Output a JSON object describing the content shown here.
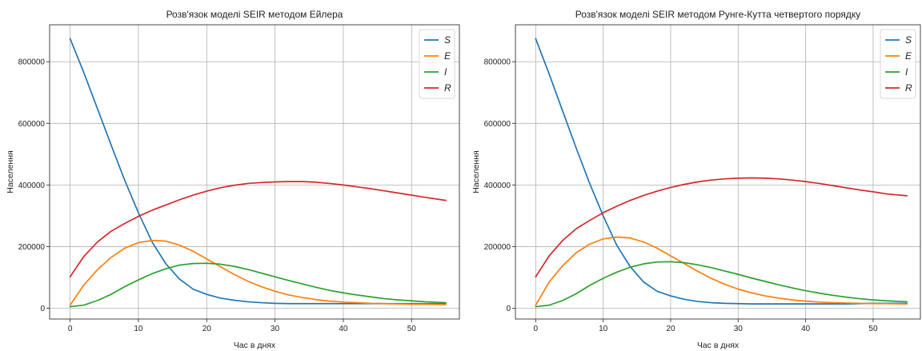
{
  "chart_data": [
    {
      "type": "line",
      "title": "Розв'язок моделі SEIR методом Ейлера",
      "xlabel": "Час в днях",
      "ylabel": "Населення",
      "xlim": [
        -3,
        57
      ],
      "ylim": [
        -35000,
        920000
      ],
      "xticks": [
        0,
        10,
        20,
        30,
        40,
        50
      ],
      "yticks": [
        0,
        200000,
        400000,
        600000,
        800000
      ],
      "grid": true,
      "legend": "top-right",
      "x": [
        0,
        2,
        4,
        6,
        8,
        10,
        12,
        14,
        16,
        18,
        20,
        22,
        24,
        26,
        28,
        30,
        32,
        34,
        36,
        38,
        40,
        42,
        44,
        46,
        48,
        50,
        52,
        55
      ],
      "series": [
        {
          "name": "S",
          "color": "#1f77b4",
          "values": [
            875000,
            765000,
            648000,
            530000,
            415000,
            310000,
            215000,
            145000,
            95000,
            62000,
            45000,
            33000,
            26000,
            21000,
            18000,
            16000,
            15000,
            15000,
            15000,
            15000,
            15000,
            15000,
            15000,
            15000,
            15000,
            15000,
            15000,
            15000
          ]
        },
        {
          "name": "E",
          "color": "#ff7f0e",
          "values": [
            10000,
            75000,
            125000,
            165000,
            195000,
            213000,
            220000,
            218000,
            205000,
            185000,
            160000,
            135000,
            110000,
            88000,
            70000,
            55000,
            43000,
            35000,
            28000,
            23000,
            20000,
            18000,
            16000,
            15000,
            14000,
            13000,
            13000,
            12000
          ]
        },
        {
          "name": "I",
          "color": "#2ca02c",
          "values": [
            5000,
            10000,
            25000,
            45000,
            70000,
            92000,
            112000,
            128000,
            140000,
            145000,
            146000,
            143000,
            136000,
            126000,
            114000,
            102000,
            90000,
            79000,
            68000,
            58000,
            50000,
            43000,
            37000,
            31000,
            27000,
            24000,
            21000,
            18000
          ]
        },
        {
          "name": "R",
          "color": "#d62728",
          "values": [
            102000,
            168000,
            215000,
            250000,
            275000,
            298000,
            318000,
            335000,
            352000,
            367000,
            380000,
            391000,
            399000,
            405000,
            408000,
            410000,
            411000,
            411000,
            409000,
            405000,
            400000,
            394000,
            388000,
            381000,
            374000,
            367000,
            360000,
            350000
          ]
        }
      ]
    },
    {
      "type": "line",
      "title": "Розв'язок моделі SEIR методом Рунге-Кутта четвертого порядку",
      "xlabel": "Час в днях",
      "ylabel": "Населення",
      "xlim": [
        -3,
        57
      ],
      "ylim": [
        -35000,
        920000
      ],
      "xticks": [
        0,
        10,
        20,
        30,
        40,
        50
      ],
      "yticks": [
        0,
        200000,
        400000,
        600000,
        800000
      ],
      "grid": true,
      "legend": "top-right",
      "x": [
        0,
        2,
        4,
        6,
        8,
        10,
        12,
        14,
        16,
        18,
        20,
        22,
        24,
        26,
        28,
        30,
        32,
        34,
        36,
        38,
        40,
        42,
        44,
        46,
        48,
        50,
        52,
        55
      ],
      "series": [
        {
          "name": "S",
          "color": "#1f77b4",
          "values": [
            875000,
            760000,
            640000,
            520000,
            405000,
            300000,
            205000,
            135000,
            85000,
            55000,
            40000,
            29000,
            22000,
            18000,
            16000,
            15000,
            14000,
            14000,
            14000,
            14000,
            14000,
            14000,
            14000,
            14000,
            15000,
            16000,
            16000,
            16000
          ]
        },
        {
          "name": "E",
          "color": "#ff7f0e",
          "values": [
            10000,
            85000,
            138000,
            180000,
            208000,
            225000,
            231000,
            228000,
            215000,
            195000,
            170000,
            145000,
            120000,
            97000,
            78000,
            62000,
            50000,
            40000,
            33000,
            27000,
            23000,
            20000,
            18000,
            17000,
            16000,
            15000,
            15000,
            14000
          ]
        },
        {
          "name": "I",
          "color": "#2ca02c",
          "values": [
            5000,
            10000,
            25000,
            47000,
            74000,
            97000,
            117000,
            133000,
            144000,
            150000,
            151000,
            148000,
            141000,
            132000,
            121000,
            110000,
            98000,
            87000,
            76000,
            66000,
            57000,
            49000,
            42000,
            36000,
            31000,
            27000,
            24000,
            21000
          ]
        },
        {
          "name": "R",
          "color": "#d62728",
          "values": [
            102000,
            170000,
            220000,
            258000,
            285000,
            310000,
            331000,
            350000,
            366000,
            380000,
            392000,
            402000,
            410000,
            416000,
            420000,
            422000,
            423000,
            422000,
            420000,
            416000,
            411000,
            405000,
            398000,
            391000,
            384000,
            378000,
            371000,
            365000
          ]
        }
      ]
    }
  ]
}
